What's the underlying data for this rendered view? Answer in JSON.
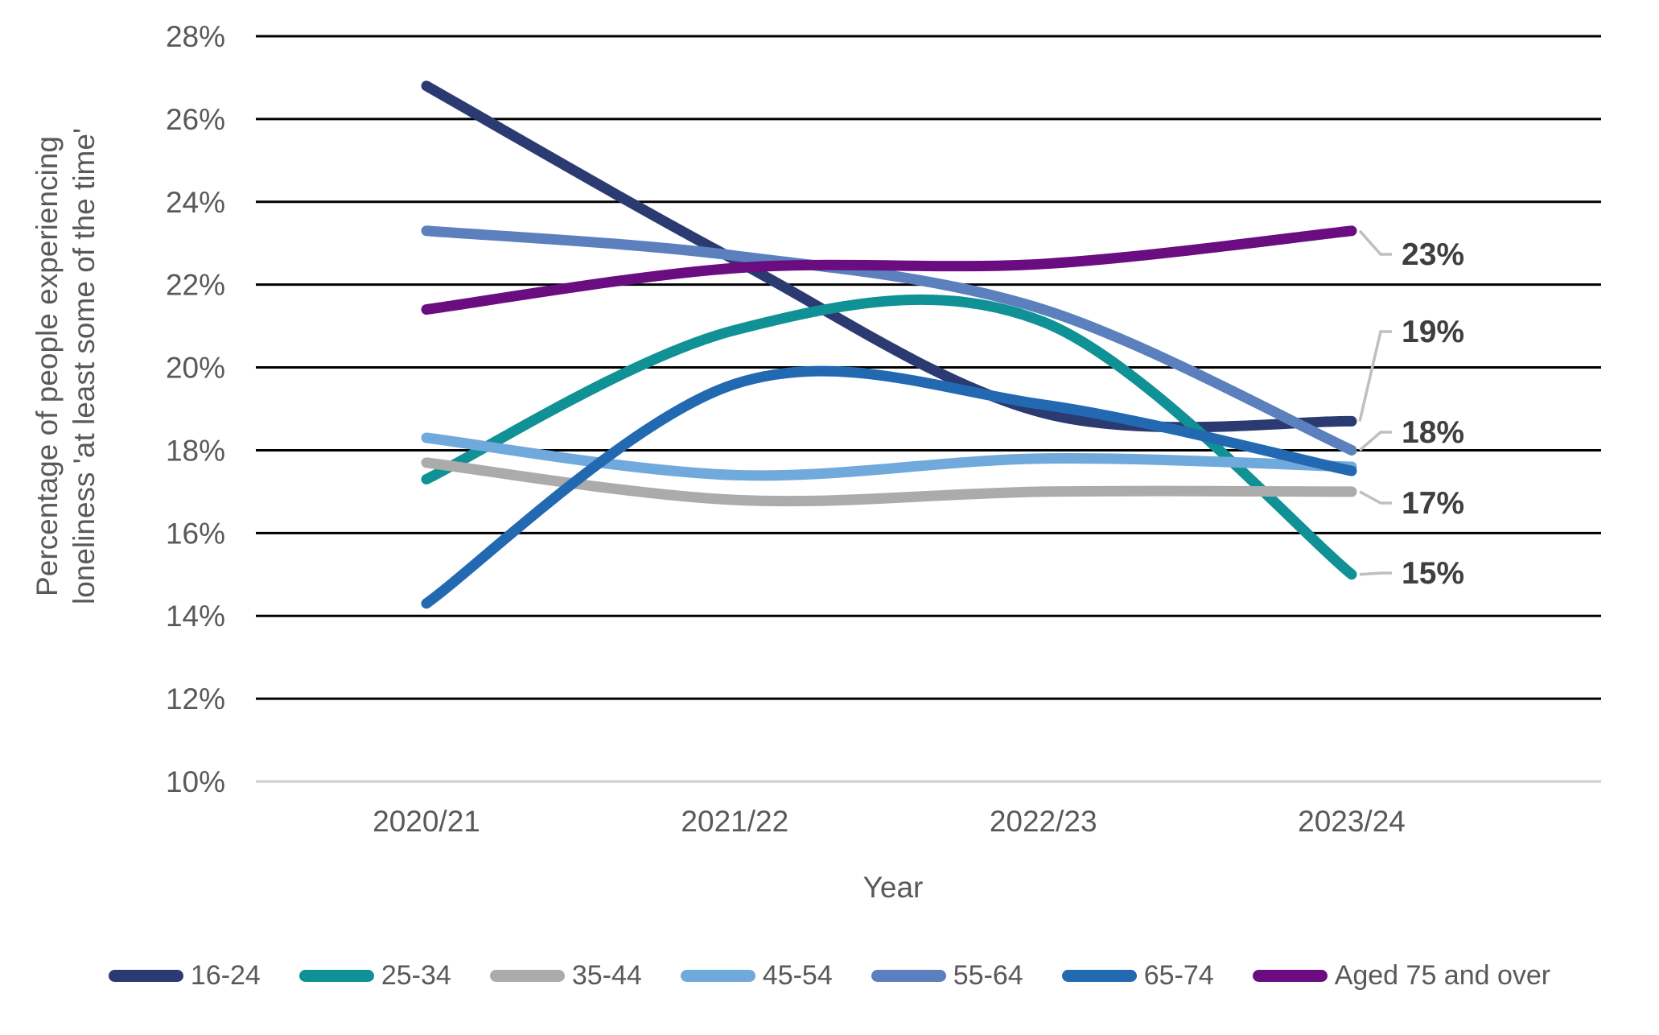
{
  "styles": {
    "background": "#FFFFFF",
    "grid_color": "#000000",
    "baseline_color": "#D2D2D2",
    "text_color": "#595959",
    "data_label_color": "#3F3F3F",
    "leader_color": "#BFBFBF"
  },
  "chart_data": {
    "type": "line",
    "title": "",
    "xlabel": "Year",
    "ylabel_line1": "Percentage of people experiencing",
    "ylabel_line2": "loneliness 'at least some of the time'",
    "categories": [
      "2020/21",
      "2021/22",
      "2022/23",
      "2023/24"
    ],
    "y_ticks": [
      "28%",
      "26%",
      "24%",
      "22%",
      "20%",
      "18%",
      "16%",
      "14%",
      "12%",
      "10%"
    ],
    "ylim": [
      10,
      28
    ],
    "grid": "horizontal-only",
    "legend_position": "bottom",
    "line_style": "smooth",
    "series": [
      {
        "name": "16-24",
        "color": "#2B3A70",
        "values": [
          26.8,
          22.6,
          18.9,
          18.7
        ],
        "end_label": "19%"
      },
      {
        "name": "25-34",
        "color": "#0F9195",
        "values": [
          17.3,
          20.9,
          21.1,
          15.0
        ],
        "end_label": "15%"
      },
      {
        "name": "35-44",
        "color": "#ABABAB",
        "values": [
          17.7,
          16.8,
          17.0,
          17.0
        ],
        "end_label": "17%"
      },
      {
        "name": "45-54",
        "color": "#70A9DB",
        "values": [
          18.3,
          17.4,
          17.8,
          17.6
        ],
        "end_label": ""
      },
      {
        "name": "55-64",
        "color": "#5C80BE",
        "values": [
          23.3,
          22.7,
          21.4,
          18.0
        ],
        "end_label": "18%"
      },
      {
        "name": "65-74",
        "color": "#2269B2",
        "values": [
          14.3,
          19.6,
          19.1,
          17.5
        ],
        "end_label": ""
      },
      {
        "name": "Aged 75 and over",
        "color": "#6A0D80",
        "values": [
          21.4,
          22.4,
          22.5,
          23.3
        ],
        "end_label": "23%"
      }
    ]
  }
}
